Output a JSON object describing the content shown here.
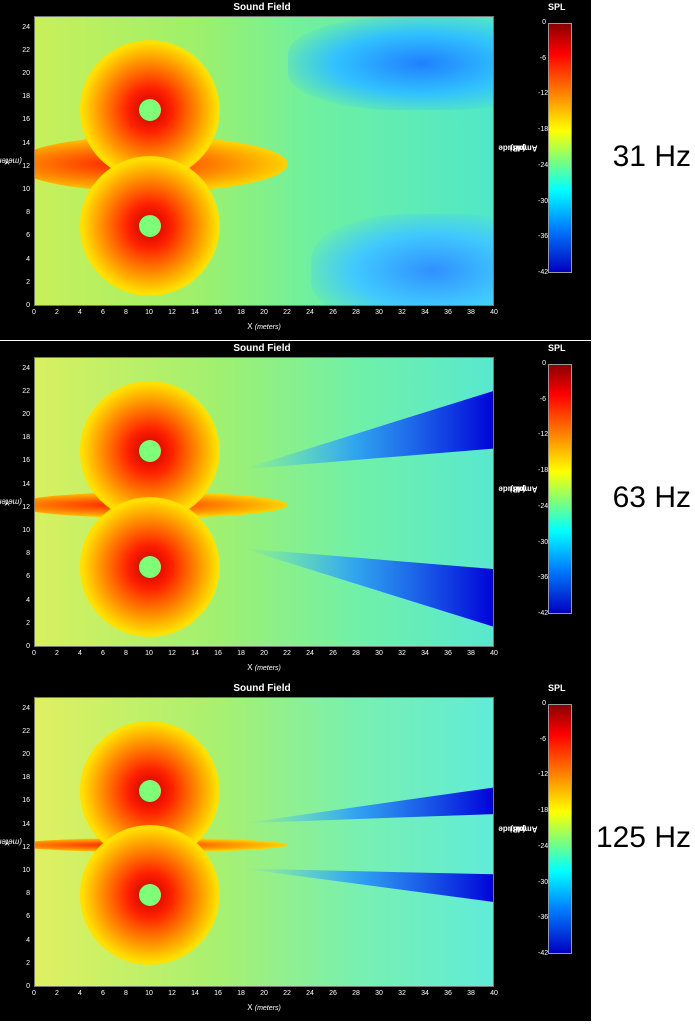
{
  "chart_data": [
    {
      "type": "heatmap",
      "title": "Sound Field",
      "frequency": "31 Hz",
      "xlabel": "X",
      "xunits": "(meters)",
      "ylabel": "Y",
      "yunits": "(meters)",
      "xlim": [
        0,
        40
      ],
      "ylim": [
        0,
        25
      ],
      "x_ticks": [
        0,
        2,
        4,
        6,
        8,
        10,
        12,
        14,
        16,
        18,
        20,
        22,
        24,
        26,
        28,
        30,
        32,
        34,
        36,
        38,
        40
      ],
      "y_ticks": [
        0,
        2,
        4,
        6,
        8,
        10,
        12,
        14,
        16,
        18,
        20,
        22,
        24
      ],
      "sources": [
        {
          "x": 10,
          "y": 17
        },
        {
          "x": 10,
          "y": 7
        }
      ],
      "colorbar": {
        "title": "SPL",
        "label": "Amplitude",
        "units": "(dB)",
        "range": [
          -42,
          0
        ],
        "ticks": [
          0,
          -6,
          -12,
          -18,
          -24,
          -30,
          -36,
          -42
        ]
      }
    },
    {
      "type": "heatmap",
      "title": "Sound Field",
      "frequency": "63 Hz",
      "xlabel": "X",
      "xunits": "(meters)",
      "ylabel": "Y",
      "yunits": "(meters)",
      "xlim": [
        0,
        40
      ],
      "ylim": [
        0,
        25
      ],
      "x_ticks": [
        0,
        2,
        4,
        6,
        8,
        10,
        12,
        14,
        16,
        18,
        20,
        22,
        24,
        26,
        28,
        30,
        32,
        34,
        36,
        38,
        40
      ],
      "y_ticks": [
        0,
        2,
        4,
        6,
        8,
        10,
        12,
        14,
        16,
        18,
        20,
        22,
        24
      ],
      "sources": [
        {
          "x": 10,
          "y": 17
        },
        {
          "x": 10,
          "y": 7
        }
      ],
      "colorbar": {
        "title": "SPL",
        "label": "Amplitude",
        "units": "(dB)",
        "range": [
          -42,
          0
        ],
        "ticks": [
          0,
          -6,
          -12,
          -18,
          -24,
          -30,
          -36,
          -42
        ]
      }
    },
    {
      "type": "heatmap",
      "title": "Sound Field",
      "frequency": "125 Hz",
      "xlabel": "X",
      "xunits": "(meters)",
      "ylabel": "Y",
      "yunits": "(meters)",
      "xlim": [
        0,
        40
      ],
      "ylim": [
        0,
        25
      ],
      "x_ticks": [
        0,
        2,
        4,
        6,
        8,
        10,
        12,
        14,
        16,
        18,
        20,
        22,
        24,
        26,
        28,
        30,
        32,
        34,
        36,
        38,
        40
      ],
      "y_ticks": [
        0,
        2,
        4,
        6,
        8,
        10,
        12,
        14,
        16,
        18,
        20,
        22,
        24
      ],
      "sources": [
        {
          "x": 10,
          "y": 17
        },
        {
          "x": 10,
          "y": 8
        }
      ],
      "colorbar": {
        "title": "SPL",
        "label": "Amplitude",
        "units": "(dB)",
        "range": [
          -42,
          0
        ],
        "ticks": [
          0,
          -6,
          -12,
          -18,
          -24,
          -30,
          -36,
          -42
        ]
      }
    }
  ]
}
